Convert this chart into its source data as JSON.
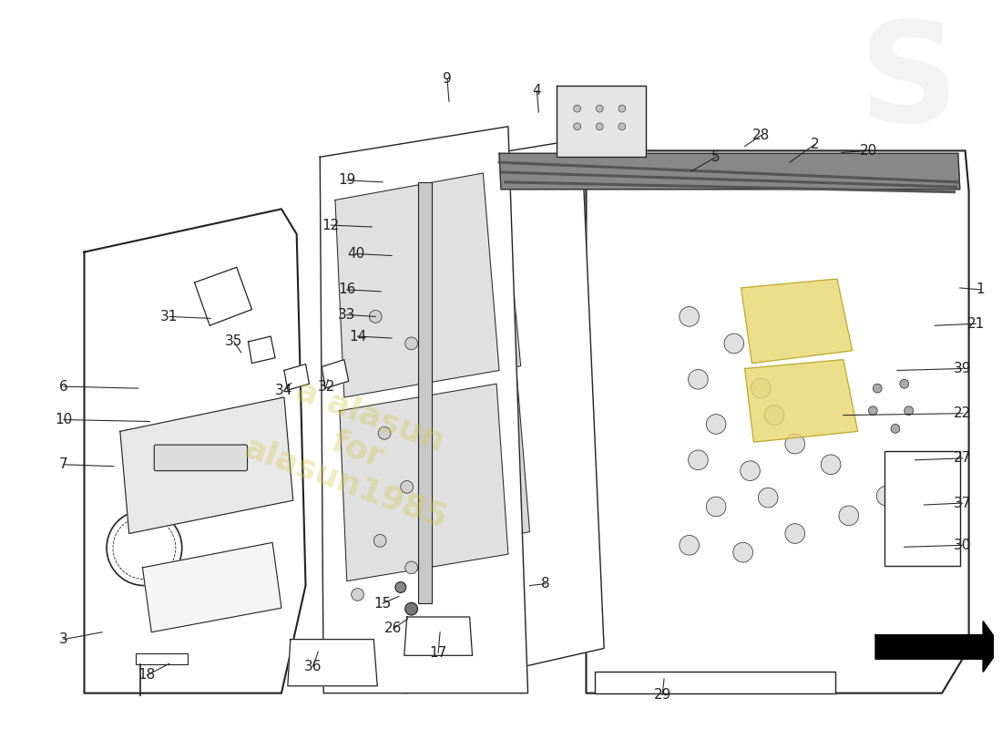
{
  "background_color": "#ffffff",
  "watermark_color": "#d4c84a",
  "watermark_alpha": 0.35,
  "line_color": "#222222",
  "line_width": 1.0,
  "label_fontsize": 11,
  "label_color": "#222222",
  "leaders": {
    "1": [
      1085,
      310,
      1062,
      308
    ],
    "2": [
      900,
      148,
      872,
      168
    ],
    "3": [
      62,
      700,
      105,
      692
    ],
    "4": [
      590,
      88,
      592,
      112
    ],
    "5": [
      790,
      162,
      762,
      178
    ],
    "6": [
      62,
      418,
      145,
      420
    ],
    "7": [
      62,
      505,
      118,
      507
    ],
    "8": [
      600,
      638,
      582,
      640
    ],
    "9": [
      490,
      75,
      492,
      100
    ],
    "10": [
      62,
      455,
      158,
      457
    ],
    "12": [
      360,
      238,
      406,
      240
    ],
    "14": [
      390,
      362,
      428,
      364
    ],
    "15": [
      418,
      660,
      436,
      652
    ],
    "16": [
      378,
      310,
      416,
      312
    ],
    "17": [
      480,
      715,
      482,
      692
    ],
    "18": [
      155,
      740,
      180,
      727
    ],
    "19": [
      378,
      188,
      418,
      190
    ],
    "20": [
      960,
      155,
      930,
      157
    ],
    "21": [
      1080,
      348,
      1034,
      350
    ],
    "22": [
      1065,
      448,
      932,
      450
    ],
    "26": [
      430,
      688,
      446,
      677
    ],
    "27": [
      1065,
      498,
      1012,
      500
    ],
    "28": [
      840,
      138,
      822,
      150
    ],
    "29": [
      730,
      762,
      732,
      744
    ],
    "30": [
      1065,
      595,
      1000,
      597
    ],
    "31": [
      180,
      340,
      226,
      342
    ],
    "32": [
      355,
      418,
      357,
      410
    ],
    "33": [
      378,
      338,
      410,
      340
    ],
    "34": [
      308,
      422,
      316,
      414
    ],
    "35": [
      252,
      368,
      260,
      380
    ],
    "36": [
      340,
      730,
      346,
      714
    ],
    "37": [
      1065,
      548,
      1022,
      550
    ],
    "39": [
      1065,
      398,
      992,
      400
    ],
    "40": [
      388,
      270,
      428,
      272
    ]
  }
}
